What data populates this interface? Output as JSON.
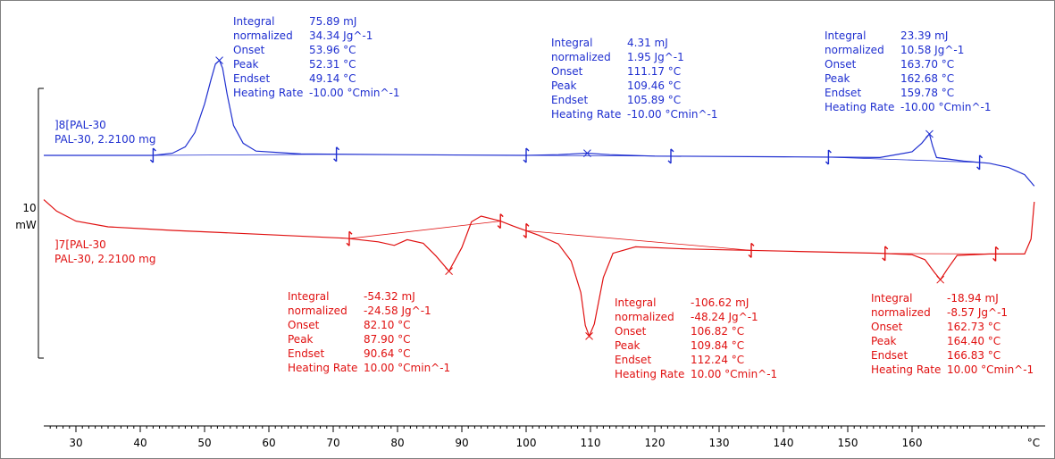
{
  "y_scale": {
    "value": "10",
    "unit": "mW"
  },
  "x_unit": "°C",
  "colors": {
    "heating": "#1f2fd0",
    "cooling": "#e01010",
    "axis": "#000000"
  },
  "chart_data": {
    "type": "line",
    "xlim": [
      25,
      180
    ],
    "x_ticks": [
      30,
      40,
      50,
      60,
      70,
      80,
      90,
      100,
      110,
      120,
      130,
      140,
      150,
      160
    ],
    "series": [
      {
        "id": "heating",
        "name": "]8[PAL-30",
        "sample": "PAL-30, 2.2100 mg",
        "color": "#1f2fd0",
        "x": [
          25,
          42,
          45,
          47,
          48.5,
          50,
          51,
          51.7,
          52.3,
          52.8,
          53.5,
          54.5,
          56,
          58,
          65,
          80,
          100,
          105,
          109.5,
          113,
          120,
          140,
          155,
          160,
          161.5,
          162.7,
          163.2,
          163.8,
          168,
          172,
          175,
          177.5,
          179
        ],
        "y": [
          0,
          0,
          0.3,
          1.2,
          3.2,
          7.2,
          10.6,
          12.8,
          13.3,
          12.2,
          8.6,
          4.2,
          1.7,
          0.6,
          0.2,
          0.1,
          0,
          0.1,
          0.3,
          0.1,
          -0.1,
          -0.2,
          -0.3,
          0.5,
          1.7,
          3.0,
          1.3,
          -0.3,
          -0.8,
          -1.1,
          -1.7,
          -2.7,
          -4.3
        ]
      },
      {
        "id": "cooling",
        "name": "]7[PAL-30",
        "sample": "PAL-30, 2.2100 mg",
        "color": "#e01010",
        "x": [
          25,
          27,
          30,
          35,
          45,
          60,
          72,
          77,
          79.5,
          81.5,
          84,
          86,
          88,
          90,
          91.5,
          93,
          96,
          98,
          102,
          105,
          107,
          108.5,
          109.2,
          109.8,
          110.6,
          112,
          113.5,
          117,
          125,
          140,
          155,
          160,
          162,
          163.5,
          164.4,
          165.5,
          167,
          172,
          177.5,
          178.5,
          179
        ],
        "y": [
          4.3,
          2.7,
          1.3,
          0.5,
          0,
          -0.6,
          -1.1,
          -1.6,
          -2.1,
          -1.3,
          -1.8,
          -3.6,
          -5.7,
          -2.4,
          1.2,
          2.0,
          1.3,
          0.6,
          -0.7,
          -1.9,
          -4.3,
          -8.7,
          -13.3,
          -14.8,
          -13.1,
          -6.6,
          -3.2,
          -2.3,
          -2.6,
          -2.9,
          -3.2,
          -3.4,
          -4.1,
          -5.9,
          -6.9,
          -5.4,
          -3.5,
          -3.3,
          -3.3,
          -1.2,
          4.0
        ]
      }
    ],
    "analyses": [
      {
        "series": "heating",
        "peak_x": 52.3,
        "peak_y": 13.3,
        "limit_x": [
          42,
          70.5
        ],
        "rows": [
          {
            "label": "Integral",
            "value": "75.89 mJ"
          },
          {
            "label": "  normalized",
            "value": "34.34 Jg^-1"
          },
          {
            "label": "Onset",
            "value": "53.96 °C"
          },
          {
            "label": "Peak",
            "value": "52.31 °C"
          },
          {
            "label": "Endset",
            "value": "49.14 °C"
          },
          {
            "label": "Heating Rate",
            "value": "-10.00 °Cmin^-1"
          }
        ]
      },
      {
        "series": "heating",
        "peak_x": 109.5,
        "peak_y": 0.3,
        "limit_x": [
          100,
          122.5
        ],
        "rows": [
          {
            "label": "Integral",
            "value": "4.31 mJ"
          },
          {
            "label": "  normalized",
            "value": "1.95 Jg^-1"
          },
          {
            "label": "Onset",
            "value": "111.17 °C"
          },
          {
            "label": "Peak",
            "value": "109.46 °C"
          },
          {
            "label": "Endset",
            "value": "105.89 °C"
          },
          {
            "label": "Heating Rate",
            "value": "-10.00 °Cmin^-1"
          }
        ]
      },
      {
        "series": "heating",
        "peak_x": 162.7,
        "peak_y": 3.0,
        "limit_x": [
          147,
          170.5
        ],
        "rows": [
          {
            "label": "Integral",
            "value": "23.39 mJ"
          },
          {
            "label": "  normalized",
            "value": "10.58 Jg^-1"
          },
          {
            "label": "Onset",
            "value": "163.70 °C"
          },
          {
            "label": "Peak",
            "value": "162.68 °C"
          },
          {
            "label": "Endset",
            "value": "159.78 °C"
          },
          {
            "label": "Heating Rate",
            "value": "-10.00 °Cmin^-1"
          }
        ]
      },
      {
        "series": "cooling",
        "peak_x": 88.0,
        "peak_y": -5.7,
        "limit_x": [
          72.5,
          96
        ],
        "rows": [
          {
            "label": "Integral",
            "value": "-54.32 mJ"
          },
          {
            "label": "  normalized",
            "value": "-24.58 Jg^-1"
          },
          {
            "label": "Onset",
            "value": "82.10 °C"
          },
          {
            "label": "Peak",
            "value": "87.90 °C"
          },
          {
            "label": "Endset",
            "value": "90.64 °C"
          },
          {
            "label": "Heating Rate",
            "value": "10.00 °Cmin^-1"
          }
        ]
      },
      {
        "series": "cooling",
        "peak_x": 109.8,
        "peak_y": -14.8,
        "limit_x": [
          100,
          135
        ],
        "rows": [
          {
            "label": "Integral",
            "value": "-106.62 mJ"
          },
          {
            "label": "  normalized",
            "value": "-48.24 Jg^-1"
          },
          {
            "label": "Onset",
            "value": "106.82 °C"
          },
          {
            "label": "Peak",
            "value": "109.84 °C"
          },
          {
            "label": "Endset",
            "value": "112.24 °C"
          },
          {
            "label": "Heating Rate",
            "value": "10.00 °Cmin^-1"
          }
        ]
      },
      {
        "series": "cooling",
        "peak_x": 164.4,
        "peak_y": -6.9,
        "limit_x": [
          155.8,
          173
        ],
        "rows": [
          {
            "label": "Integral",
            "value": "-18.94 mJ"
          },
          {
            "label": "  normalized",
            "value": "-8.57 Jg^-1"
          },
          {
            "label": "Onset",
            "value": "162.73 °C"
          },
          {
            "label": "Peak",
            "value": "164.40 °C"
          },
          {
            "label": "Endset",
            "value": "166.83 °C"
          },
          {
            "label": "Heating Rate",
            "value": "10.00 °Cmin^-1"
          }
        ]
      }
    ]
  }
}
